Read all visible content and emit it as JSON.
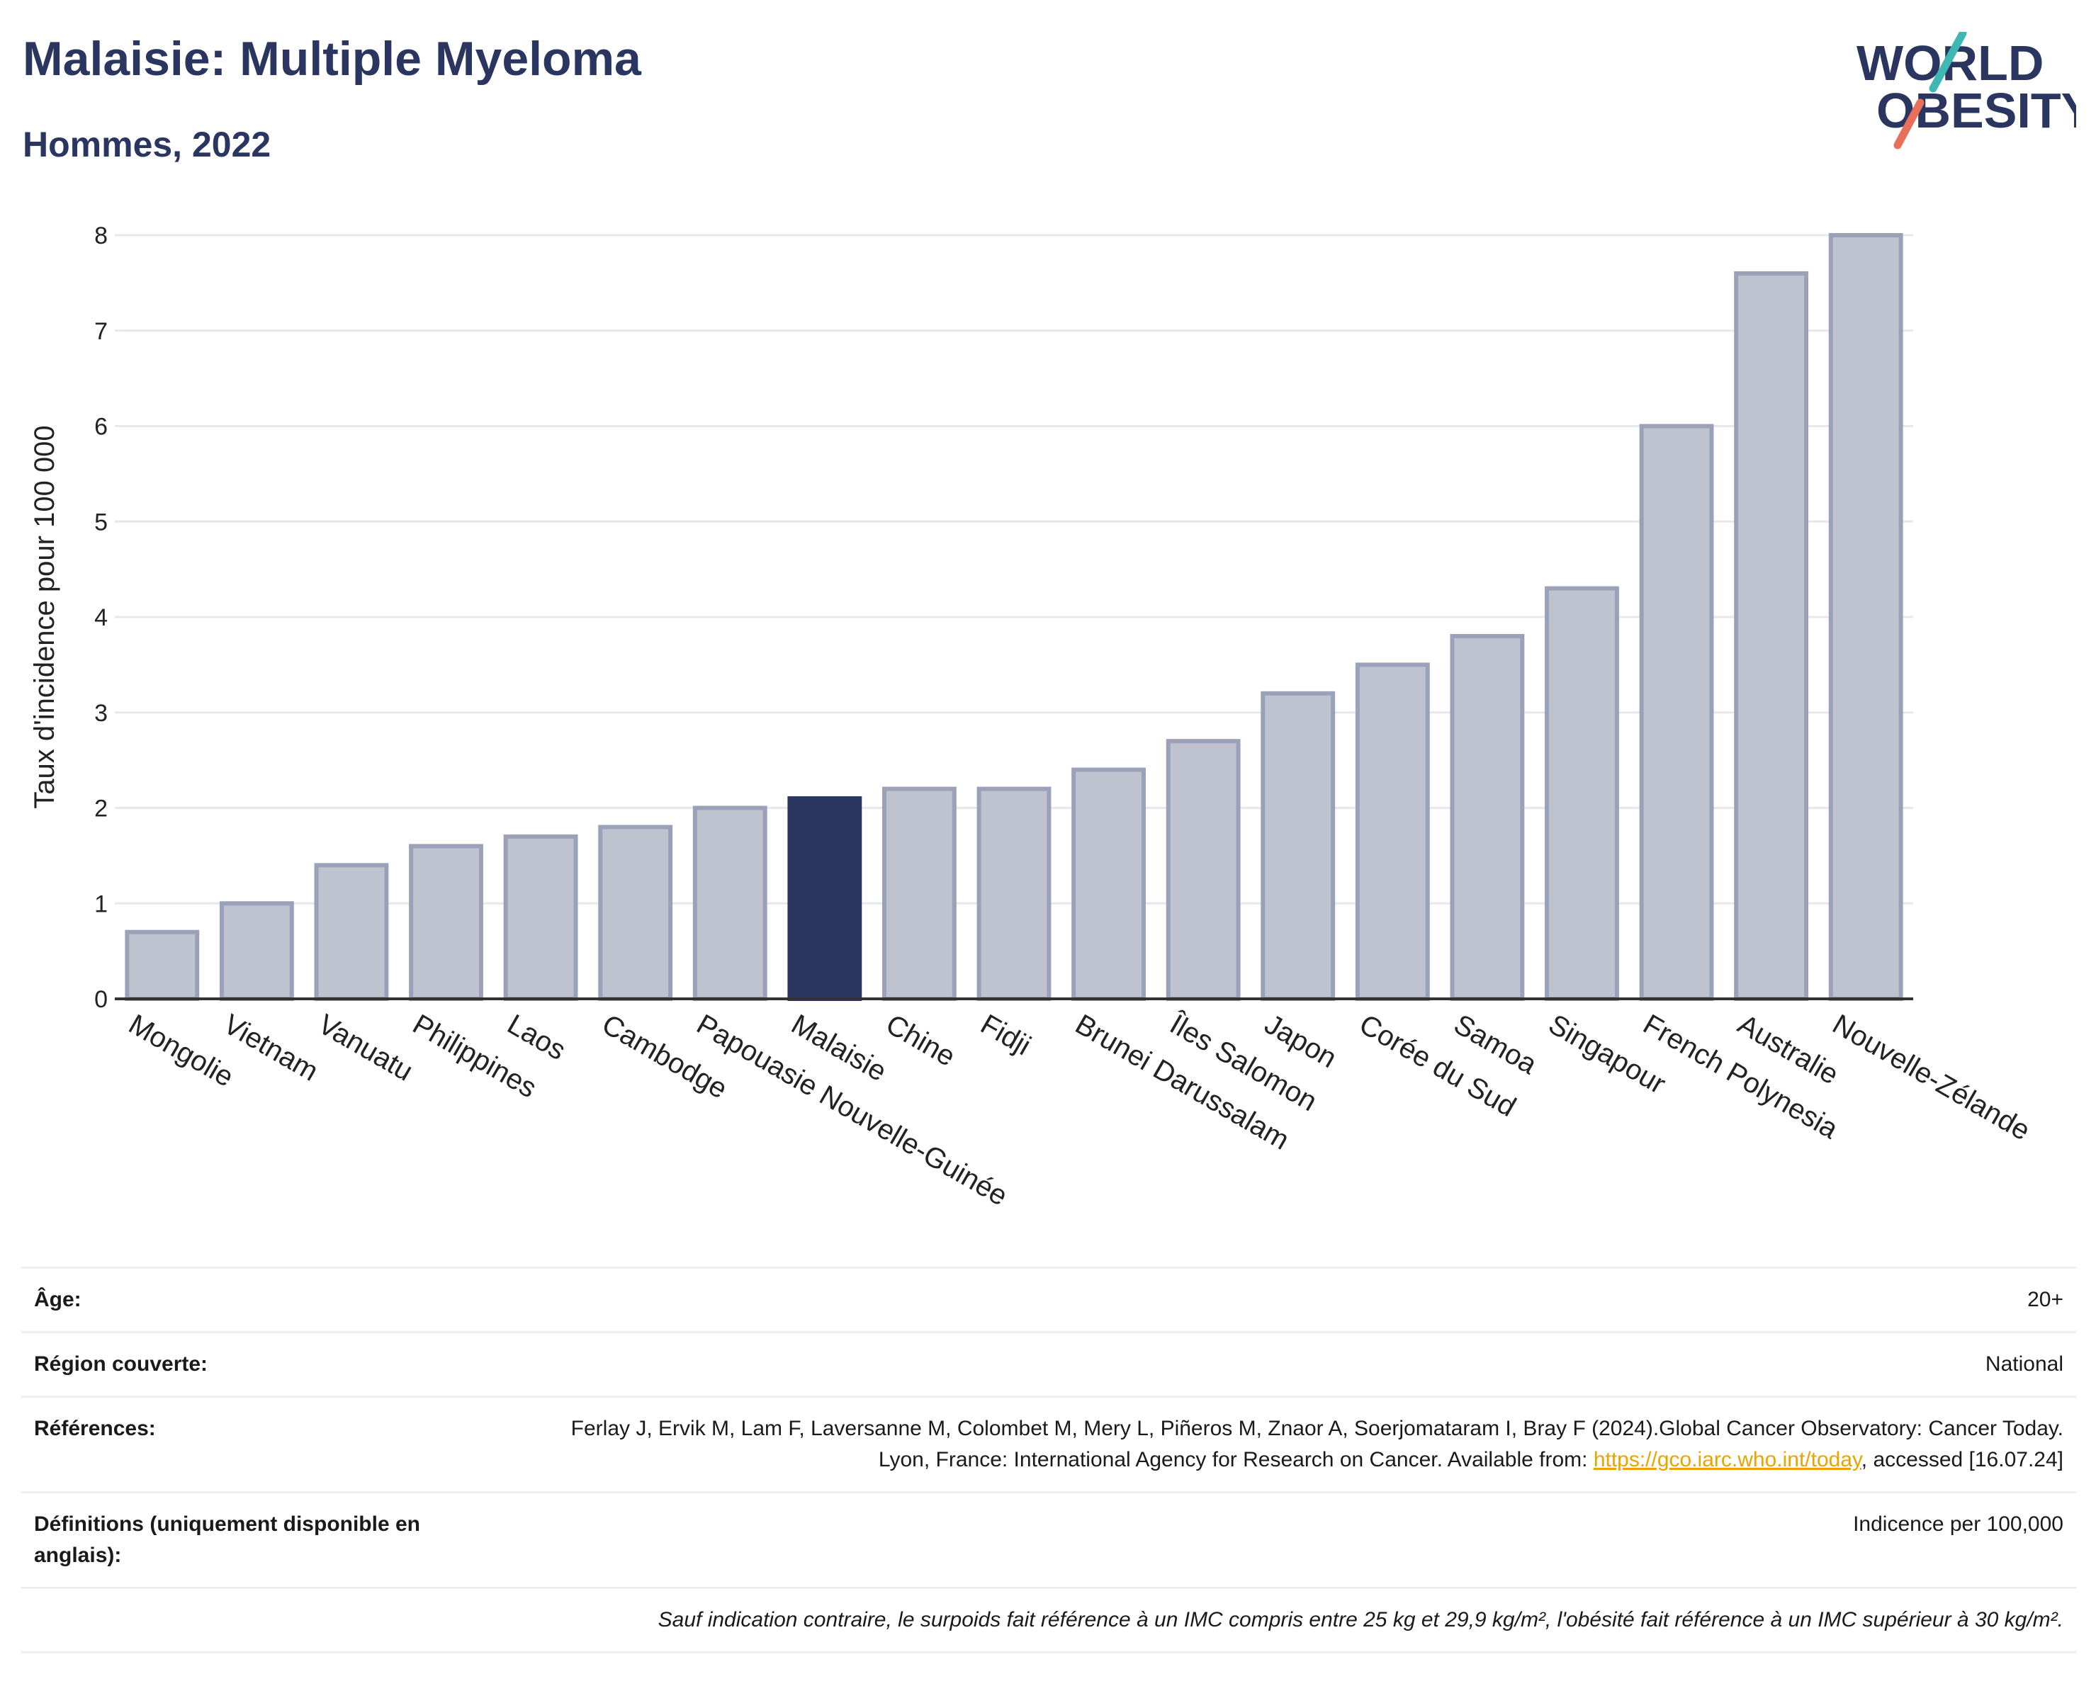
{
  "header": {
    "title": "Malaisie: Multiple Myeloma",
    "subtitle": "Hommes, 2022",
    "logo_line1": "WORLD",
    "logo_line2": "OBESITY"
  },
  "colors": {
    "bar": "#bfc3d0",
    "bar_border": "#9aa1b8",
    "highlight": "#2b3660",
    "grid": "#e6e8ee",
    "axis": "#333333",
    "logo_text": "#2b3660",
    "logo_teal": "#3fb8b3",
    "logo_red": "#e8705a"
  },
  "chart_data": {
    "type": "bar",
    "ylabel": "Taux d'incidence pour 100 000",
    "ylim": [
      0,
      8
    ],
    "yticks": [
      0,
      1,
      2,
      3,
      4,
      5,
      6,
      7,
      8
    ],
    "highlight": "Malaisie",
    "categories": [
      "Mongolie",
      "Vietnam",
      "Vanuatu",
      "Philippines",
      "Laos",
      "Cambodge",
      "Papouasie Nouvelle-Guinée",
      "Malaisie",
      "Chine",
      "Fidji",
      "Brunei Darussalam",
      "Îles Salomon",
      "Japon",
      "Corée du Sud",
      "Samoa",
      "Singapour",
      "French Polynesia",
      "Australie",
      "Nouvelle-Zélande"
    ],
    "values": [
      0.7,
      1.0,
      1.4,
      1.6,
      1.7,
      1.8,
      2.0,
      2.1,
      2.2,
      2.2,
      2.4,
      2.7,
      3.2,
      3.5,
      3.8,
      4.3,
      6.0,
      7.6,
      8.0
    ]
  },
  "info": {
    "age_label": "Âge:",
    "age_value": "20+",
    "region_label": "Région couverte:",
    "region_value": "National",
    "references_label": "Références:",
    "references_text_1": "Ferlay J, Ervik M, Lam F, Laversanne M, Colombet M, Mery L, Piñeros M, Znaor A, Soerjomataram I, Bray F (2024).Global Cancer Observatory: Cancer Today. Lyon, France: International Agency for Research on Cancer. Available from: ",
    "references_link": "https://gco.iarc.who.int/today",
    "references_text_2": ", accessed [16.07.24]",
    "definitions_label": "Définitions (uniquement disponible en anglais):",
    "definitions_value": "Indicence per 100,000",
    "note": "Sauf indication contraire, le surpoids fait référence à un IMC compris entre 25 kg et 29,9 kg/m², l'obésité fait référence à un IMC supérieur à 30 kg/m²."
  }
}
